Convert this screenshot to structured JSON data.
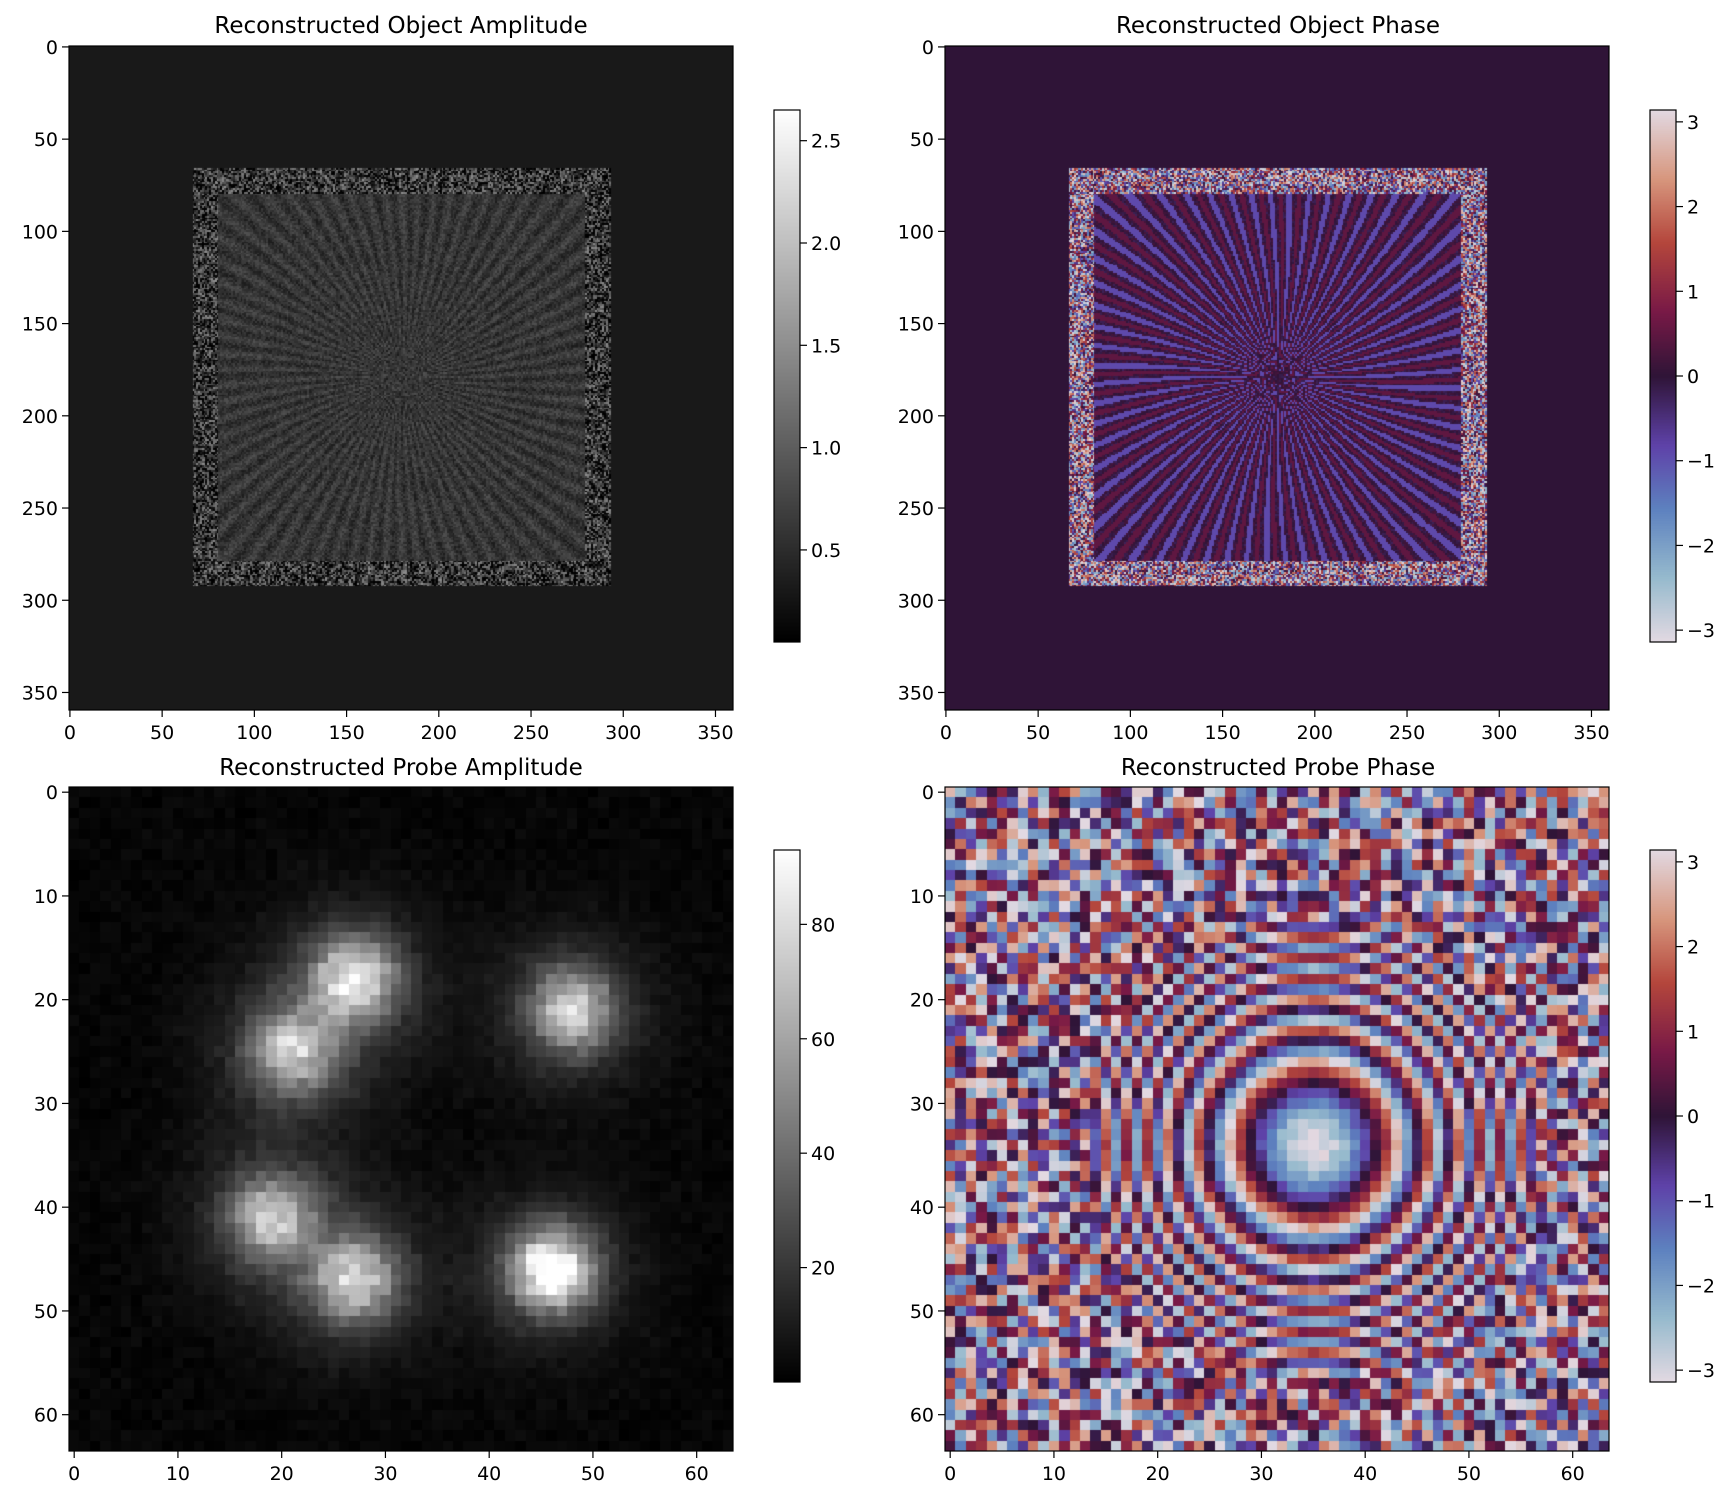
{
  "chart_data": [
    {
      "type": "heatmap",
      "title": "Reconstructed Object Amplitude",
      "colormap": "gray",
      "xlim": [
        0,
        359
      ],
      "ylim": [
        359,
        0
      ],
      "xticks": [
        "0",
        "50",
        "100",
        "150",
        "200",
        "250",
        "300",
        "350"
      ],
      "yticks": [
        "0",
        "50",
        "100",
        "150",
        "200",
        "250",
        "300",
        "350"
      ],
      "colorbar": {
        "range": [
          0.05,
          2.65
        ],
        "ticks": [
          "0.5",
          "1.0",
          "1.5",
          "2.0",
          "2.5"
        ]
      },
      "background_value": 0.3,
      "scanned_region": {
        "x": [
          67,
          293
        ],
        "y": [
          66,
          292
        ],
        "mean_value": 0.6
      }
    },
    {
      "type": "heatmap",
      "title": "Reconstructed Object Phase",
      "colormap": "twilight_shifted",
      "xlim": [
        0,
        359
      ],
      "ylim": [
        359,
        0
      ],
      "xticks": [
        "0",
        "50",
        "100",
        "150",
        "200",
        "250",
        "300",
        "350"
      ],
      "yticks": [
        "0",
        "50",
        "100",
        "150",
        "200",
        "250",
        "300",
        "350"
      ],
      "colorbar": {
        "range": [
          -3.14,
          3.14
        ],
        "ticks": [
          "3",
          "2",
          "1",
          "0",
          "−1",
          "−2",
          "−3"
        ]
      },
      "background_value": 0,
      "scanned_region": {
        "x": [
          67,
          293
        ],
        "y": [
          66,
          292
        ]
      }
    },
    {
      "type": "heatmap",
      "title": "Reconstructed Probe Amplitude",
      "colormap": "gray",
      "xlim": [
        0,
        63
      ],
      "ylim": [
        63,
        0
      ],
      "xticks": [
        "0",
        "10",
        "20",
        "30",
        "40",
        "50",
        "60"
      ],
      "yticks": [
        "0",
        "10",
        "20",
        "30",
        "40",
        "50",
        "60"
      ],
      "colorbar": {
        "range": [
          0,
          93
        ],
        "ticks": [
          "20",
          "40",
          "60",
          "80"
        ]
      },
      "bright_lobes": [
        {
          "x": 27,
          "y": 18,
          "value": 70
        },
        {
          "x": 21,
          "y": 25,
          "value": 55
        },
        {
          "x": 48,
          "y": 21,
          "value": 60
        },
        {
          "x": 19,
          "y": 41,
          "value": 55
        },
        {
          "x": 27,
          "y": 47,
          "value": 60
        },
        {
          "x": 46,
          "y": 46,
          "value": 88
        }
      ]
    },
    {
      "type": "heatmap",
      "title": "Reconstructed Probe Phase",
      "colormap": "twilight_shifted",
      "xlim": [
        0,
        63
      ],
      "ylim": [
        63,
        0
      ],
      "xticks": [
        "0",
        "10",
        "20",
        "30",
        "40",
        "50",
        "60"
      ],
      "yticks": [
        "0",
        "10",
        "20",
        "30",
        "40",
        "50",
        "60"
      ],
      "colorbar": {
        "range": [
          -3.14,
          3.14
        ],
        "ticks": [
          "3",
          "2",
          "1",
          "0",
          "−1",
          "−2",
          "−3"
        ]
      },
      "ring_center": {
        "x": 35,
        "y": 34
      }
    }
  ]
}
